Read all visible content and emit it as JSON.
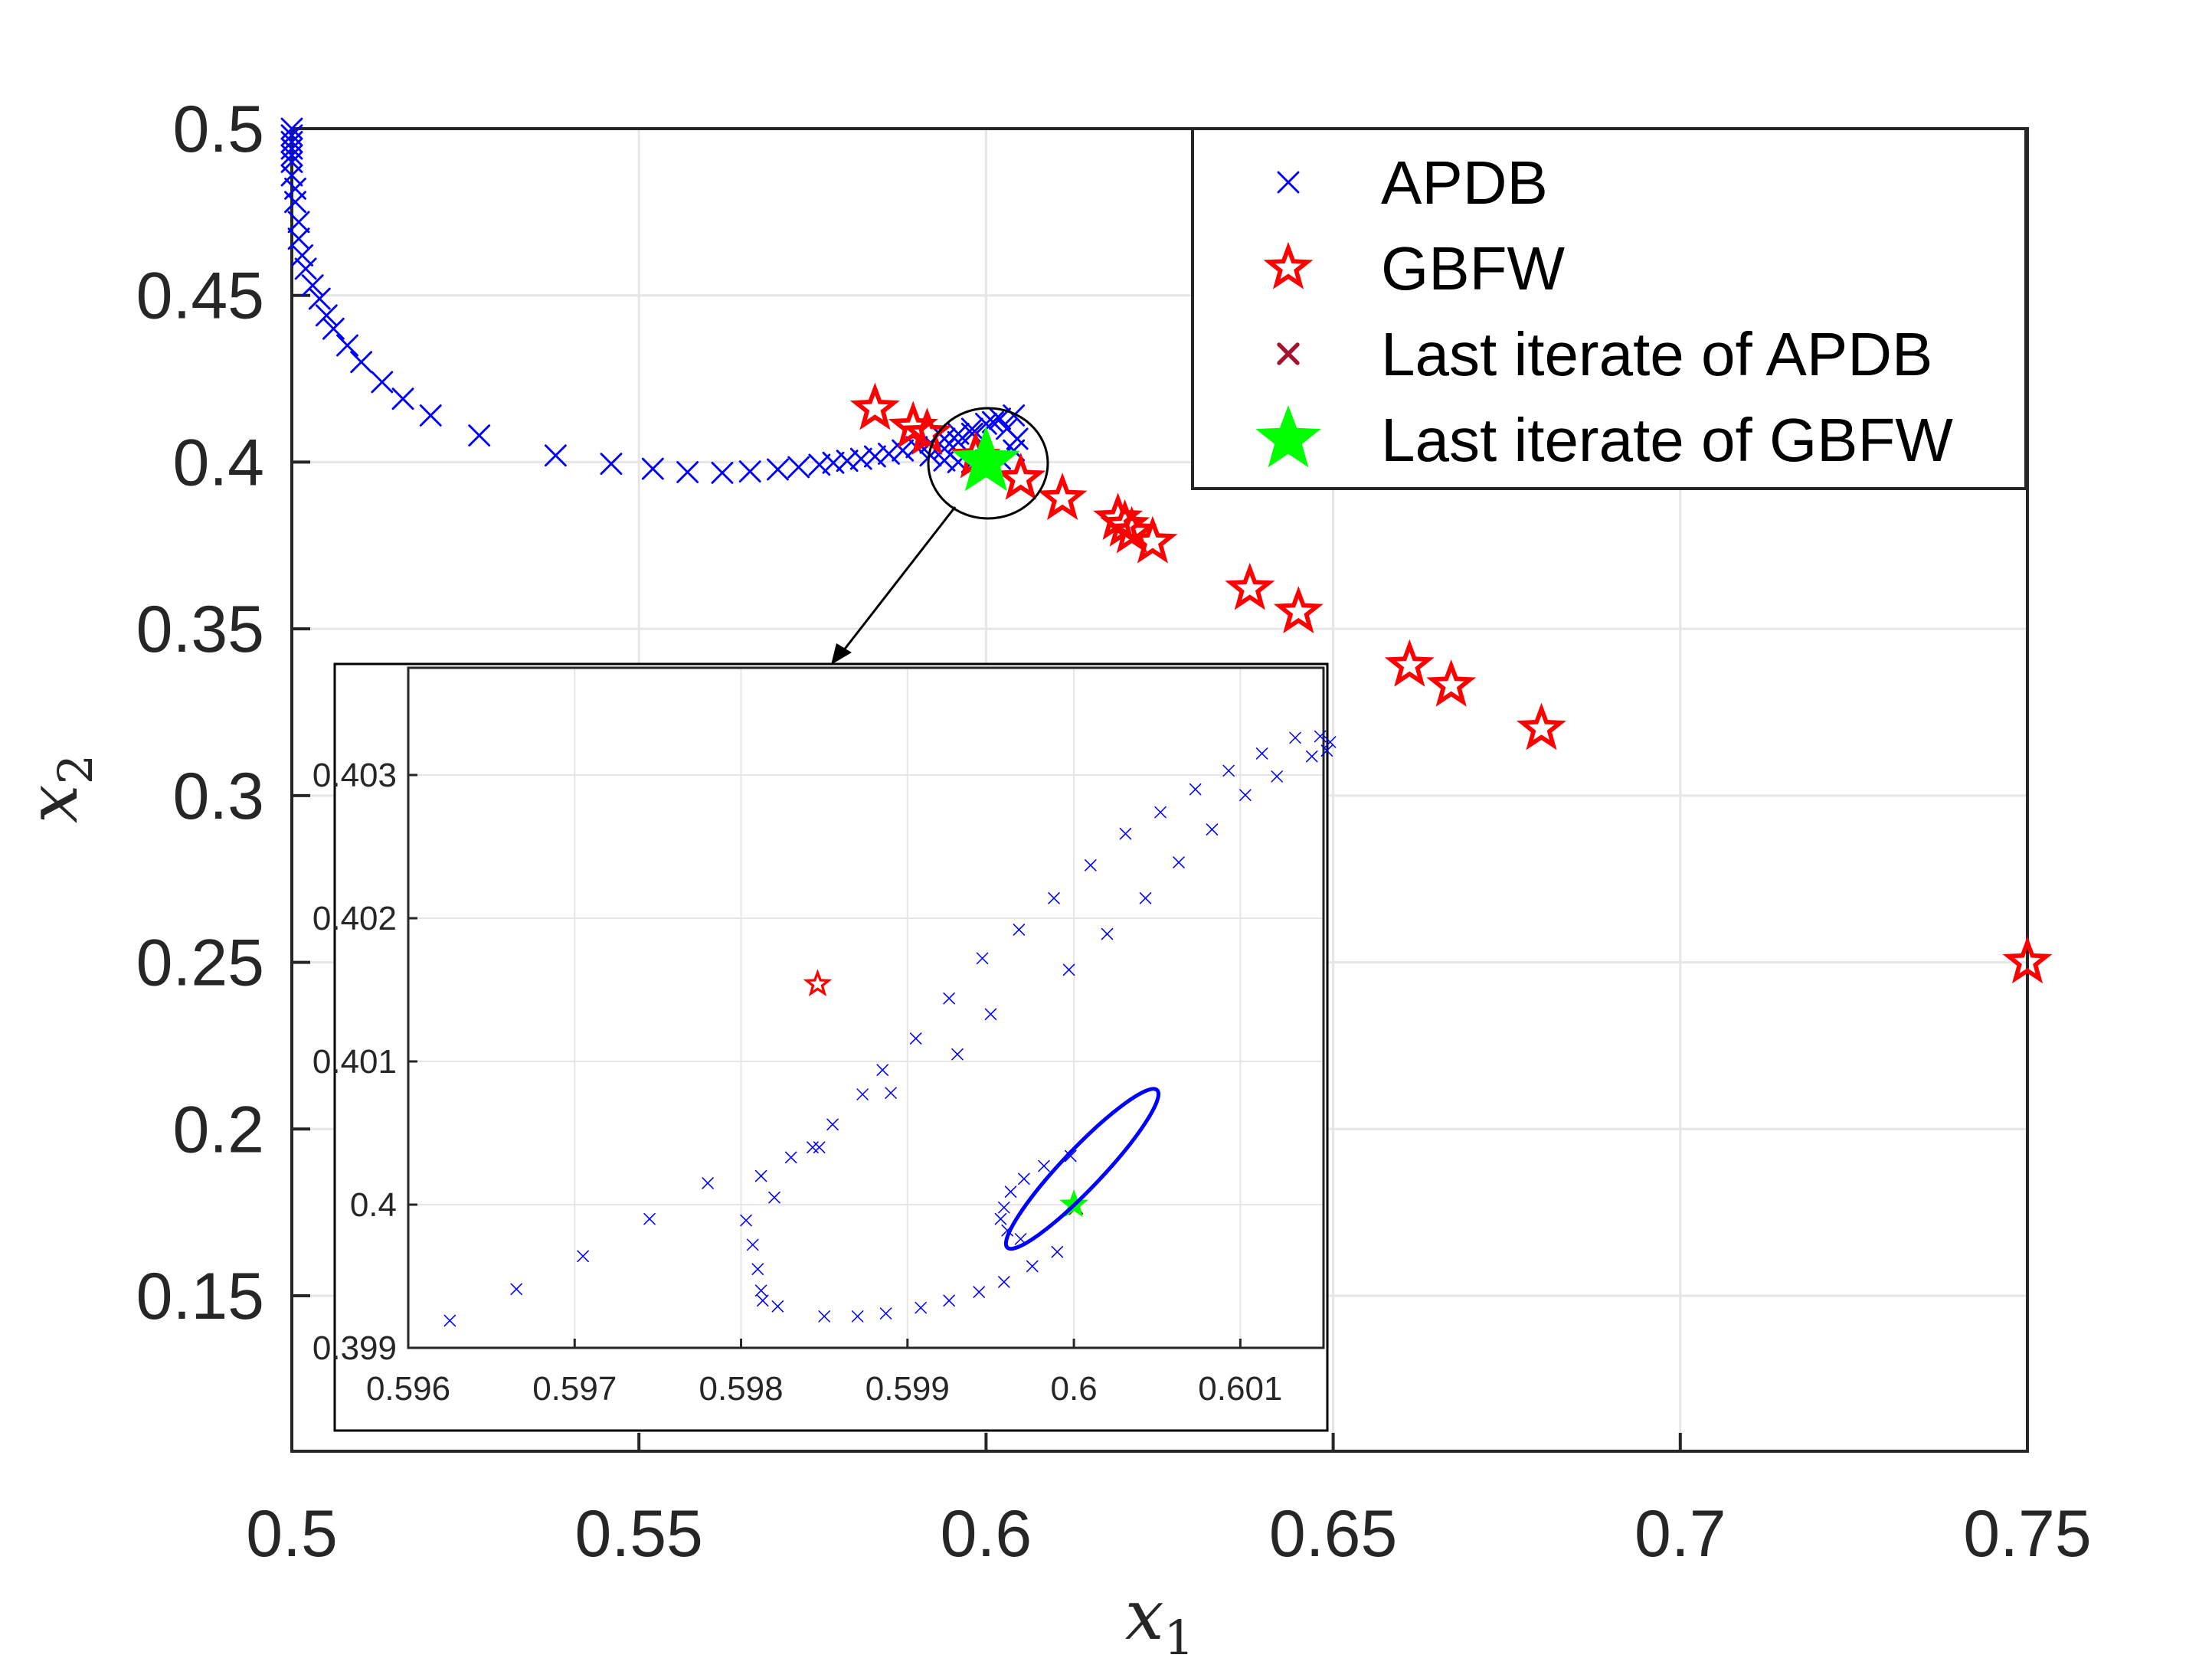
{
  "chart_data": [
    {
      "type": "scatter",
      "title": "",
      "xlabel": "x",
      "xlabel_sub": "1",
      "ylabel": "x",
      "ylabel_sub": "2",
      "xlim": [
        0.5,
        0.75
      ],
      "ylim": [
        0.11,
        0.5
      ],
      "xticks": [
        0.5,
        0.55,
        0.6,
        0.65,
        0.7,
        0.75
      ],
      "xtick_labels": [
        "0.5",
        "0.55",
        "0.6",
        "0.65",
        "0.7",
        "0.75"
      ],
      "yticks": [
        0.15,
        0.2,
        0.25,
        0.3,
        0.35,
        0.4,
        0.45,
        0.5
      ],
      "ytick_labels": [
        "0.15",
        "0.2",
        "0.25",
        "0.3",
        "0.35",
        "0.4",
        "0.45",
        "0.5"
      ],
      "grid": true,
      "legend_position": "top-right",
      "series": [
        {
          "name": "APDB",
          "marker": "x",
          "color": "#0000ff",
          "points": [
            [
              0.5,
              0.5
            ],
            [
              0.5,
              0.498
            ],
            [
              0.5,
              0.496
            ],
            [
              0.5,
              0.494
            ],
            [
              0.5,
              0.492
            ],
            [
              0.5,
              0.49
            ],
            [
              0.5,
              0.486
            ],
            [
              0.5005,
              0.482
            ],
            [
              0.5005,
              0.478
            ],
            [
              0.501,
              0.472
            ],
            [
              0.501,
              0.467
            ],
            [
              0.5015,
              0.462
            ],
            [
              0.502,
              0.458
            ],
            [
              0.503,
              0.453
            ],
            [
              0.504,
              0.449
            ],
            [
              0.505,
              0.444
            ],
            [
              0.506,
              0.44
            ],
            [
              0.508,
              0.435
            ],
            [
              0.51,
              0.43
            ],
            [
              0.513,
              0.424
            ],
            [
              0.516,
              0.419
            ],
            [
              0.52,
              0.414
            ],
            [
              0.527,
              0.408
            ],
            [
              0.538,
              0.402
            ],
            [
              0.546,
              0.3995
            ],
            [
              0.552,
              0.398
            ],
            [
              0.557,
              0.397
            ],
            [
              0.562,
              0.3968
            ],
            [
              0.566,
              0.3972
            ],
            [
              0.57,
              0.3978
            ],
            [
              0.573,
              0.3985
            ],
            [
              0.576,
              0.3992
            ],
            [
              0.578,
              0.3998
            ],
            [
              0.58,
              0.4004
            ],
            [
              0.582,
              0.401
            ],
            [
              0.584,
              0.4017
            ],
            [
              0.586,
              0.4025
            ],
            [
              0.588,
              0.4035
            ],
            [
              0.59,
              0.4045
            ],
            [
              0.592,
              0.4058
            ],
            [
              0.594,
              0.407
            ],
            [
              0.596,
              0.4085
            ],
            [
              0.598,
              0.41
            ],
            [
              0.6,
              0.4115
            ],
            [
              0.602,
              0.413
            ],
            [
              0.604,
              0.414
            ],
            [
              0.592,
              0.402
            ],
            [
              0.594,
              0.4005
            ],
            [
              0.596,
              0.4
            ],
            [
              0.598,
              0.4
            ],
            [
              0.6,
              0.4005
            ],
            [
              0.602,
              0.401
            ],
            [
              0.604,
              0.4035
            ],
            [
              0.6045,
              0.407
            ],
            [
              0.603,
              0.41
            ],
            [
              0.601,
              0.412
            ],
            [
              0.598,
              0.4085
            ],
            [
              0.596,
              0.406
            ],
            [
              0.594,
              0.404
            ],
            [
              0.6,
              0.3995
            ]
          ]
        },
        {
          "name": "GBFW",
          "marker": "hollow-star",
          "color": "#ff0000",
          "points": [
            [
              0.75,
              0.25
            ],
            [
              0.68,
              0.32
            ],
            [
              0.667,
              0.333
            ],
            [
              0.661,
              0.339
            ],
            [
              0.645,
              0.355
            ],
            [
              0.638,
              0.362
            ],
            [
              0.624,
              0.376
            ],
            [
              0.621,
              0.379
            ],
            [
              0.62,
              0.381
            ],
            [
              0.619,
              0.383
            ],
            [
              0.611,
              0.389
            ],
            [
              0.605,
              0.395
            ],
            [
              0.5915,
              0.4085
            ],
            [
              0.5895,
              0.4105
            ],
            [
              0.584,
              0.416
            ],
            [
              0.5985,
              0.4015
            ]
          ]
        },
        {
          "name": "Last iterate of APDB",
          "marker": "x-bold",
          "color": "#a2142f",
          "points": [
            [
              0.59998,
              0.39998
            ]
          ]
        },
        {
          "name": "Last iterate of GBFW",
          "marker": "filled-star",
          "color": "#00ff00",
          "points": [
            [
              0.6,
              0.4
            ]
          ]
        }
      ]
    },
    {
      "type": "scatter",
      "title": "",
      "xlabel": "",
      "ylabel": "",
      "xlim": [
        0.596,
        0.6015
      ],
      "ylim": [
        0.399,
        0.4039
      ],
      "xticks": [
        0.596,
        0.597,
        0.598,
        0.599,
        0.6,
        0.601
      ],
      "xtick_labels": [
        "0.596",
        "0.597",
        "0.598",
        "0.599",
        "0.6",
        "0.601"
      ],
      "yticks": [
        0.399,
        0.4,
        0.401,
        0.402,
        0.403
      ],
      "ytick_labels": [
        "0.399",
        "0.4",
        "0.401",
        "0.402",
        "0.403"
      ],
      "grid": true,
      "series": [
        {
          "name": "APDB",
          "marker": "x",
          "color": "#0000ff",
          "points": [
            [
              0.59625,
              0.39919
            ],
            [
              0.59665,
              0.39941
            ],
            [
              0.59705,
              0.39964
            ],
            [
              0.59745,
              0.3999
            ],
            [
              0.5978,
              0.40015
            ],
            [
              0.59803,
              0.39989
            ],
            [
              0.59807,
              0.39972
            ],
            [
              0.5981,
              0.39955
            ],
            [
              0.59812,
              0.4002
            ],
            [
              0.59812,
              0.3994
            ],
            [
              0.59813,
              0.39933
            ],
            [
              0.5982,
              0.40005
            ],
            [
              0.59822,
              0.39929
            ],
            [
              0.5983,
              0.40033
            ],
            [
              0.59843,
              0.4004
            ],
            [
              0.59847,
              0.4004
            ],
            [
              0.5985,
              0.39922
            ],
            [
              0.59855,
              0.40056
            ],
            [
              0.5987,
              0.39922
            ],
            [
              0.59873,
              0.40077
            ],
            [
              0.59885,
              0.40094
            ],
            [
              0.59887,
              0.39924
            ],
            [
              0.5989,
              0.40078
            ],
            [
              0.59905,
              0.40116
            ],
            [
              0.59908,
              0.39928
            ],
            [
              0.59925,
              0.40144
            ],
            [
              0.59925,
              0.39933
            ],
            [
              0.5993,
              0.40105
            ],
            [
              0.59943,
              0.39939
            ],
            [
              0.59945,
              0.40172
            ],
            [
              0.5995,
              0.40133
            ],
            [
              0.59958,
              0.39946
            ],
            [
              0.59967,
              0.40192
            ],
            [
              0.59975,
              0.39957
            ],
            [
              0.59988,
              0.40214
            ],
            [
              0.5999,
              0.39967
            ],
            [
              0.59997,
              0.40164
            ],
            [
              0.6001,
              0.40237
            ],
            [
              0.6002,
              0.40189
            ],
            [
              0.60031,
              0.40259
            ],
            [
              0.60043,
              0.40214
            ],
            [
              0.60052,
              0.40274
            ],
            [
              0.60063,
              0.40239
            ],
            [
              0.60073,
              0.4029
            ],
            [
              0.60083,
              0.40262
            ],
            [
              0.60093,
              0.40303
            ],
            [
              0.60103,
              0.40286
            ],
            [
              0.60113,
              0.40315
            ],
            [
              0.60122,
              0.40299
            ],
            [
              0.60133,
              0.40326
            ],
            [
              0.60143,
              0.40313
            ],
            [
              0.60148,
              0.40327
            ],
            [
              0.60152,
              0.40317
            ],
            [
              0.60154,
              0.40323
            ],
            [
              0.59958,
              0.39998
            ],
            [
              0.59962,
              0.40009
            ],
            [
              0.5997,
              0.40018
            ],
            [
              0.59982,
              0.40027
            ],
            [
              0.59998,
              0.40034
            ],
            [
              0.59956,
              0.3999
            ],
            [
              0.5996,
              0.39982
            ],
            [
              0.59968,
              0.39976
            ]
          ],
          "small_ellipse": {
            "center": [
              0.60004,
              0.40036
            ],
            "semi_axes_note": "tight elliptical cycle of APDB iterates around (0.6, 0.4)",
            "from": [
              0.5996,
              0.3997
            ],
            "to": [
              0.6005,
              0.4008
            ]
          }
        },
        {
          "name": "GBFW",
          "marker": "hollow-star",
          "color": "#ff0000",
          "points": [
            [
              0.59846,
              0.40154
            ]
          ]
        },
        {
          "name": "Last iterate of APDB",
          "marker": "x-bold",
          "color": "#a2142f",
          "points": [
            [
              0.60001,
              0.39998
            ]
          ]
        },
        {
          "name": "Last iterate of GBFW",
          "marker": "filled-star",
          "color": "#00ff00",
          "points": [
            [
              0.6,
              0.4
            ]
          ]
        }
      ]
    }
  ],
  "legend": {
    "items": [
      {
        "label": "APDB",
        "marker": "x",
        "color": "#0000ff"
      },
      {
        "label": "GBFW",
        "marker": "hollow-star",
        "color": "#ff0000"
      },
      {
        "label": "Last iterate of APDB",
        "marker": "x-bold",
        "color": "#a2142f"
      },
      {
        "label": "Last iterate of GBFW",
        "marker": "filled-star",
        "color": "#00ff00"
      }
    ]
  }
}
